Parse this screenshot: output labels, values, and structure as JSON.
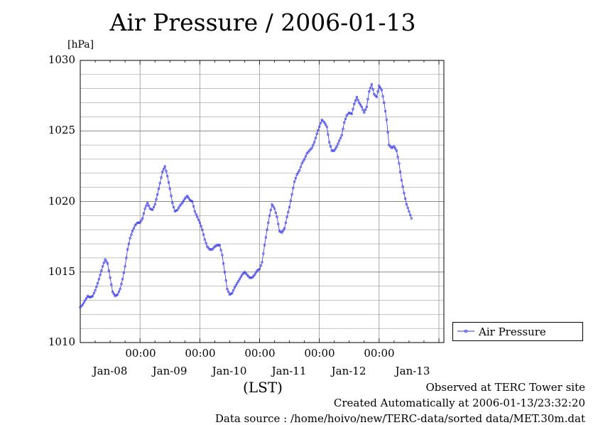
{
  "title": "Air Pressure / 2006-01-13",
  "colors": {
    "series": "#3333ee",
    "grid": "#888888",
    "axis": "#000000"
  },
  "legend": {
    "label": "Air Pressure",
    "placement": "bottom-right"
  },
  "footer": {
    "site": "Observed at TERC Tower site",
    "created": "Created Automatically at 2006-01-13/23:32:20",
    "source": "Data source : /home/hoivo/new/TERC-data/sorted  data/MET.30m.dat"
  },
  "chart_data": {
    "type": "line",
    "title": "Air Pressure / 2006-01-13",
    "ylabel": "[hPa]",
    "xlabel": "(LST)",
    "ylim": [
      1010,
      1030
    ],
    "y_ticks": [
      "1010",
      "1015",
      "1020",
      "1025",
      "1030"
    ],
    "x_tick_time": [
      "00:00",
      "00:00",
      "00:00",
      "00:00",
      "00:00"
    ],
    "x_tick_dates": [
      "Jan-08",
      "Jan-09",
      "Jan-10",
      "Jan-11",
      "Jan-12",
      "Jan-13"
    ],
    "x_range_hours": [
      0,
      146
    ],
    "grid": true,
    "series": [
      {
        "name": "Air Pressure",
        "points": [
          [
            0,
            1012.5
          ],
          [
            1,
            1012.7
          ],
          [
            2,
            1013.0
          ],
          [
            3,
            1013.3
          ],
          [
            4,
            1013.2
          ],
          [
            5,
            1013.3
          ],
          [
            6,
            1013.7
          ],
          [
            7,
            1014.2
          ],
          [
            8,
            1014.8
          ],
          [
            9,
            1015.4
          ],
          [
            10,
            1015.9
          ],
          [
            11,
            1015.6
          ],
          [
            12,
            1014.6
          ],
          [
            13,
            1013.6
          ],
          [
            14,
            1013.3
          ],
          [
            15,
            1013.4
          ],
          [
            16,
            1013.8
          ],
          [
            17,
            1014.5
          ],
          [
            18,
            1015.4
          ],
          [
            19,
            1016.6
          ],
          [
            20,
            1017.4
          ],
          [
            21,
            1017.9
          ],
          [
            22,
            1018.3
          ],
          [
            23,
            1018.5
          ],
          [
            24,
            1018.5
          ],
          [
            25,
            1018.8
          ],
          [
            26,
            1019.5
          ],
          [
            27,
            1019.9
          ],
          [
            28,
            1019.5
          ],
          [
            29,
            1019.4
          ],
          [
            30,
            1019.8
          ],
          [
            31,
            1020.5
          ],
          [
            32,
            1021.3
          ],
          [
            33,
            1022.1
          ],
          [
            34,
            1022.5
          ],
          [
            35,
            1021.8
          ],
          [
            36,
            1020.9
          ],
          [
            37,
            1019.9
          ],
          [
            38,
            1019.3
          ],
          [
            39,
            1019.4
          ],
          [
            40,
            1019.7
          ],
          [
            41,
            1019.9
          ],
          [
            42,
            1020.2
          ],
          [
            43,
            1020.4
          ],
          [
            44,
            1020.1
          ],
          [
            45,
            1020.0
          ],
          [
            46,
            1019.3
          ],
          [
            47,
            1018.9
          ],
          [
            48,
            1018.5
          ],
          [
            49,
            1018.0
          ],
          [
            50,
            1017.3
          ],
          [
            51,
            1016.8
          ],
          [
            52,
            1016.6
          ],
          [
            53,
            1016.6
          ],
          [
            54,
            1016.8
          ],
          [
            55,
            1016.9
          ],
          [
            56,
            1016.9
          ],
          [
            57,
            1016.2
          ],
          [
            58,
            1015.0
          ],
          [
            59,
            1013.8
          ],
          [
            60,
            1013.4
          ],
          [
            61,
            1013.5
          ],
          [
            62,
            1013.9
          ],
          [
            63,
            1014.2
          ],
          [
            64,
            1014.5
          ],
          [
            65,
            1014.8
          ],
          [
            66,
            1015.0
          ],
          [
            67,
            1014.8
          ],
          [
            68,
            1014.6
          ],
          [
            69,
            1014.6
          ],
          [
            70,
            1014.8
          ],
          [
            71,
            1015.1
          ],
          [
            72,
            1015.2
          ],
          [
            73,
            1015.7
          ],
          [
            74,
            1016.9
          ],
          [
            75,
            1018.0
          ],
          [
            76,
            1019.0
          ],
          [
            77,
            1019.8
          ],
          [
            78,
            1019.5
          ],
          [
            79,
            1018.9
          ],
          [
            80,
            1017.9
          ],
          [
            81,
            1017.8
          ],
          [
            82,
            1018.1
          ],
          [
            83,
            1018.9
          ],
          [
            84,
            1019.6
          ],
          [
            85,
            1020.5
          ],
          [
            86,
            1021.4
          ],
          [
            87,
            1021.9
          ],
          [
            88,
            1022.2
          ],
          [
            89,
            1022.7
          ],
          [
            90,
            1023.0
          ],
          [
            91,
            1023.4
          ],
          [
            92,
            1023.6
          ],
          [
            93,
            1023.8
          ],
          [
            94,
            1024.2
          ],
          [
            95,
            1024.8
          ],
          [
            96,
            1025.3
          ],
          [
            97,
            1025.8
          ],
          [
            98,
            1025.6
          ],
          [
            99,
            1025.3
          ],
          [
            100,
            1024.2
          ],
          [
            101,
            1023.6
          ],
          [
            102,
            1023.6
          ],
          [
            103,
            1023.9
          ],
          [
            104,
            1024.3
          ],
          [
            105,
            1024.7
          ],
          [
            106,
            1025.6
          ],
          [
            107,
            1026.1
          ],
          [
            108,
            1026.3
          ],
          [
            109,
            1026.2
          ],
          [
            110,
            1026.9
          ],
          [
            111,
            1027.4
          ],
          [
            112,
            1027.0
          ],
          [
            113,
            1026.7
          ],
          [
            114,
            1026.3
          ],
          [
            115,
            1026.7
          ],
          [
            116,
            1027.8
          ],
          [
            117,
            1028.3
          ],
          [
            118,
            1027.6
          ],
          [
            119,
            1027.4
          ],
          [
            120,
            1028.2
          ],
          [
            121,
            1027.9
          ],
          [
            122,
            1027.0
          ],
          [
            123,
            1025.8
          ],
          [
            124,
            1024.0
          ],
          [
            125,
            1023.8
          ],
          [
            126,
            1023.9
          ],
          [
            127,
            1023.6
          ],
          [
            128,
            1022.7
          ],
          [
            129,
            1021.5
          ],
          [
            130,
            1020.6
          ],
          [
            131,
            1019.8
          ],
          [
            132,
            1019.3
          ],
          [
            133,
            1018.8
          ]
        ]
      }
    ]
  }
}
